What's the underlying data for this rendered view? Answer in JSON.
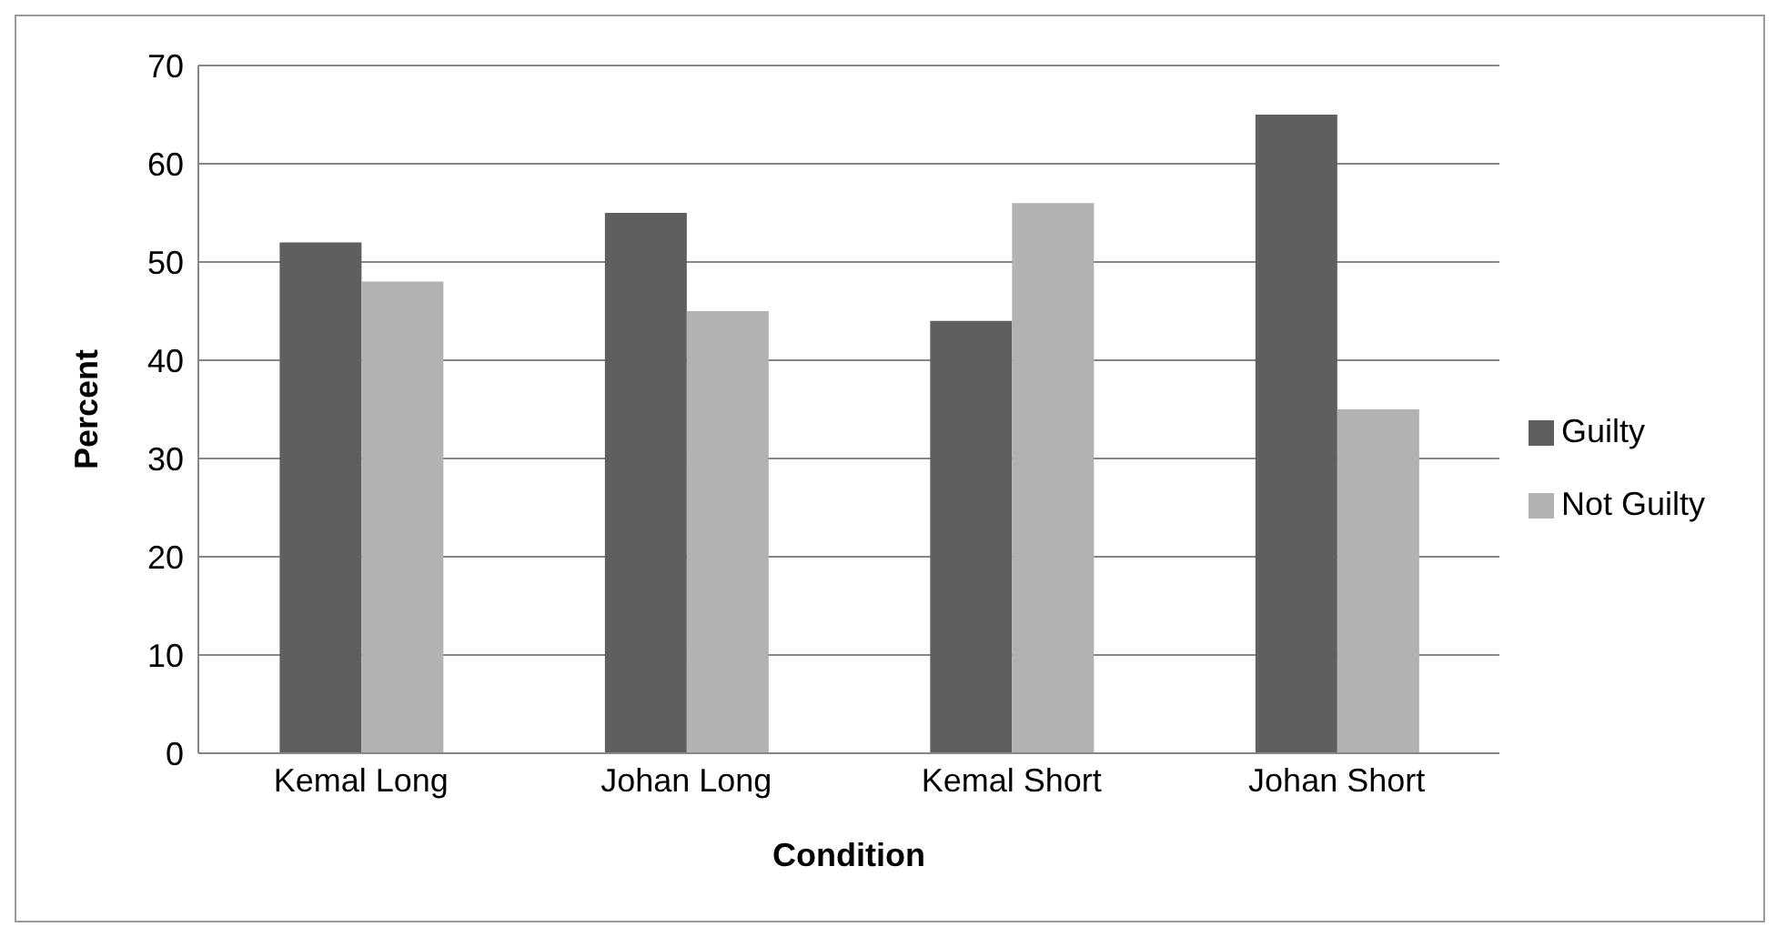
{
  "chart_data": {
    "type": "bar",
    "xlabel": "Condition",
    "ylabel": "Percent",
    "categories": [
      "Kemal Long",
      "Johan Long",
      "Kemal Short",
      "Johan Short"
    ],
    "series": [
      {
        "name": "Guilty",
        "color": "#5f5f5f",
        "values": [
          52,
          55,
          44,
          65
        ]
      },
      {
        "name": "Not Guilty",
        "color": "#b2b2b2",
        "values": [
          48,
          45,
          56,
          35
        ]
      }
    ],
    "ylim": [
      0,
      70
    ],
    "yticks": [
      0,
      10,
      20,
      30,
      40,
      50,
      60,
      70
    ],
    "grid": "y",
    "legend": "right"
  }
}
